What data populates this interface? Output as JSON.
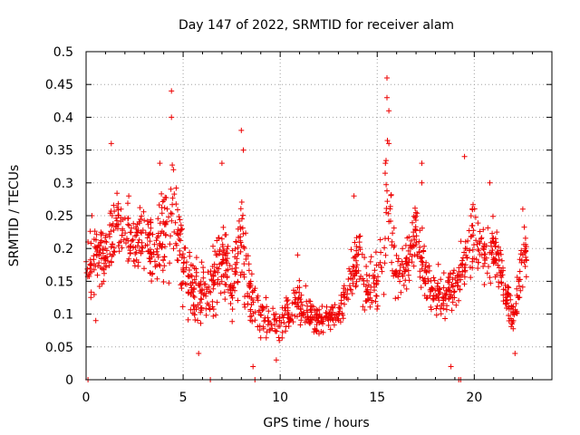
{
  "chart_data": {
    "type": "scatter",
    "title": "Day 147 of 2022, SRMTID for receiver alam",
    "xlabel": "GPS time / hours",
    "ylabel": "SRMTID / TECUs",
    "xlim": [
      0,
      24
    ],
    "ylim": [
      0,
      0.5
    ],
    "x_ticks": [
      0,
      5,
      10,
      15,
      20
    ],
    "x_tick_labels": [
      "0",
      "5",
      "10",
      "15",
      "20"
    ],
    "y_ticks": [
      0,
      0.05,
      0.1,
      0.15,
      0.2,
      0.25,
      0.3,
      0.35,
      0.4,
      0.45,
      0.5
    ],
    "y_tick_labels": [
      "0",
      "0.05",
      "0.1",
      "0.15",
      "0.2",
      "0.25",
      "0.3",
      "0.35",
      "0.4",
      "0.45",
      "0.5"
    ],
    "grid": true,
    "marker": "+",
    "color": "#ee0000",
    "envelope": {
      "hours": [
        0,
        0.5,
        1,
        1.5,
        2,
        2.5,
        3,
        3.5,
        4,
        4.5,
        5,
        5.5,
        6,
        6.5,
        7,
        7.5,
        8,
        8.5,
        9,
        9.5,
        10,
        10.5,
        11,
        11.5,
        12,
        12.5,
        13,
        13.5,
        14,
        14.5,
        15,
        15.5,
        16,
        16.5,
        17,
        17.5,
        18,
        18.5,
        19,
        19.5,
        20,
        20.5,
        21,
        21.5,
        22,
        22.5,
        22.7
      ],
      "lower": [
        0.08,
        0.09,
        0.11,
        0.12,
        0.14,
        0.12,
        0.11,
        0.1,
        0.08,
        0.07,
        0.06,
        0.04,
        0.05,
        0.05,
        0.06,
        0.05,
        0.05,
        0.03,
        0.04,
        0.03,
        0.03,
        0.04,
        0.04,
        0.05,
        0.05,
        0.06,
        0.06,
        0.07,
        0.07,
        0.06,
        0.06,
        0.04,
        0.08,
        0.1,
        0.12,
        0.09,
        0.05,
        0.05,
        0.08,
        0.1,
        0.12,
        0.11,
        0.1,
        0.07,
        0.04,
        0.1,
        0.14
      ],
      "upper": [
        0.27,
        0.28,
        0.27,
        0.36,
        0.32,
        0.3,
        0.33,
        0.27,
        0.35,
        0.44,
        0.28,
        0.24,
        0.22,
        0.22,
        0.34,
        0.22,
        0.38,
        0.21,
        0.16,
        0.15,
        0.14,
        0.16,
        0.19,
        0.14,
        0.14,
        0.14,
        0.13,
        0.22,
        0.29,
        0.22,
        0.23,
        0.46,
        0.23,
        0.23,
        0.33,
        0.22,
        0.21,
        0.2,
        0.21,
        0.25,
        0.34,
        0.27,
        0.3,
        0.24,
        0.14,
        0.27,
        0.25
      ]
    },
    "zero_points": [
      0.1,
      6.4,
      8.7,
      19.2,
      19.3
    ],
    "series": [
      {
        "name": "SRMTID",
        "sample_points": [
          [
            0.1,
            0.21
          ],
          [
            0.3,
            0.25
          ],
          [
            0.5,
            0.09
          ],
          [
            0.9,
            0.15
          ],
          [
            1.3,
            0.18
          ],
          [
            1.3,
            0.36
          ],
          [
            1.8,
            0.26
          ],
          [
            2.2,
            0.28
          ],
          [
            2.6,
            0.22
          ],
          [
            3.3,
            0.18
          ],
          [
            3.8,
            0.33
          ],
          [
            4.4,
            0.44
          ],
          [
            4.4,
            0.4
          ],
          [
            4.5,
            0.32
          ],
          [
            5.0,
            0.17
          ],
          [
            5.8,
            0.04
          ],
          [
            7.0,
            0.33
          ],
          [
            8.0,
            0.38
          ],
          [
            8.1,
            0.35
          ],
          [
            8.6,
            0.02
          ],
          [
            9.8,
            0.03
          ],
          [
            10.9,
            0.19
          ],
          [
            12.0,
            0.07
          ],
          [
            13.8,
            0.28
          ],
          [
            14.4,
            0.12
          ],
          [
            15.5,
            0.46
          ],
          [
            15.5,
            0.43
          ],
          [
            15.6,
            0.41
          ],
          [
            15.6,
            0.36
          ],
          [
            16.3,
            0.2
          ],
          [
            17.3,
            0.33
          ],
          [
            17.3,
            0.3
          ],
          [
            17.8,
            0.14
          ],
          [
            18.8,
            0.02
          ],
          [
            19.5,
            0.34
          ],
          [
            19.9,
            0.18
          ],
          [
            20.8,
            0.3
          ],
          [
            21.5,
            0.12
          ],
          [
            22.1,
            0.04
          ],
          [
            22.5,
            0.26
          ]
        ]
      }
    ]
  }
}
